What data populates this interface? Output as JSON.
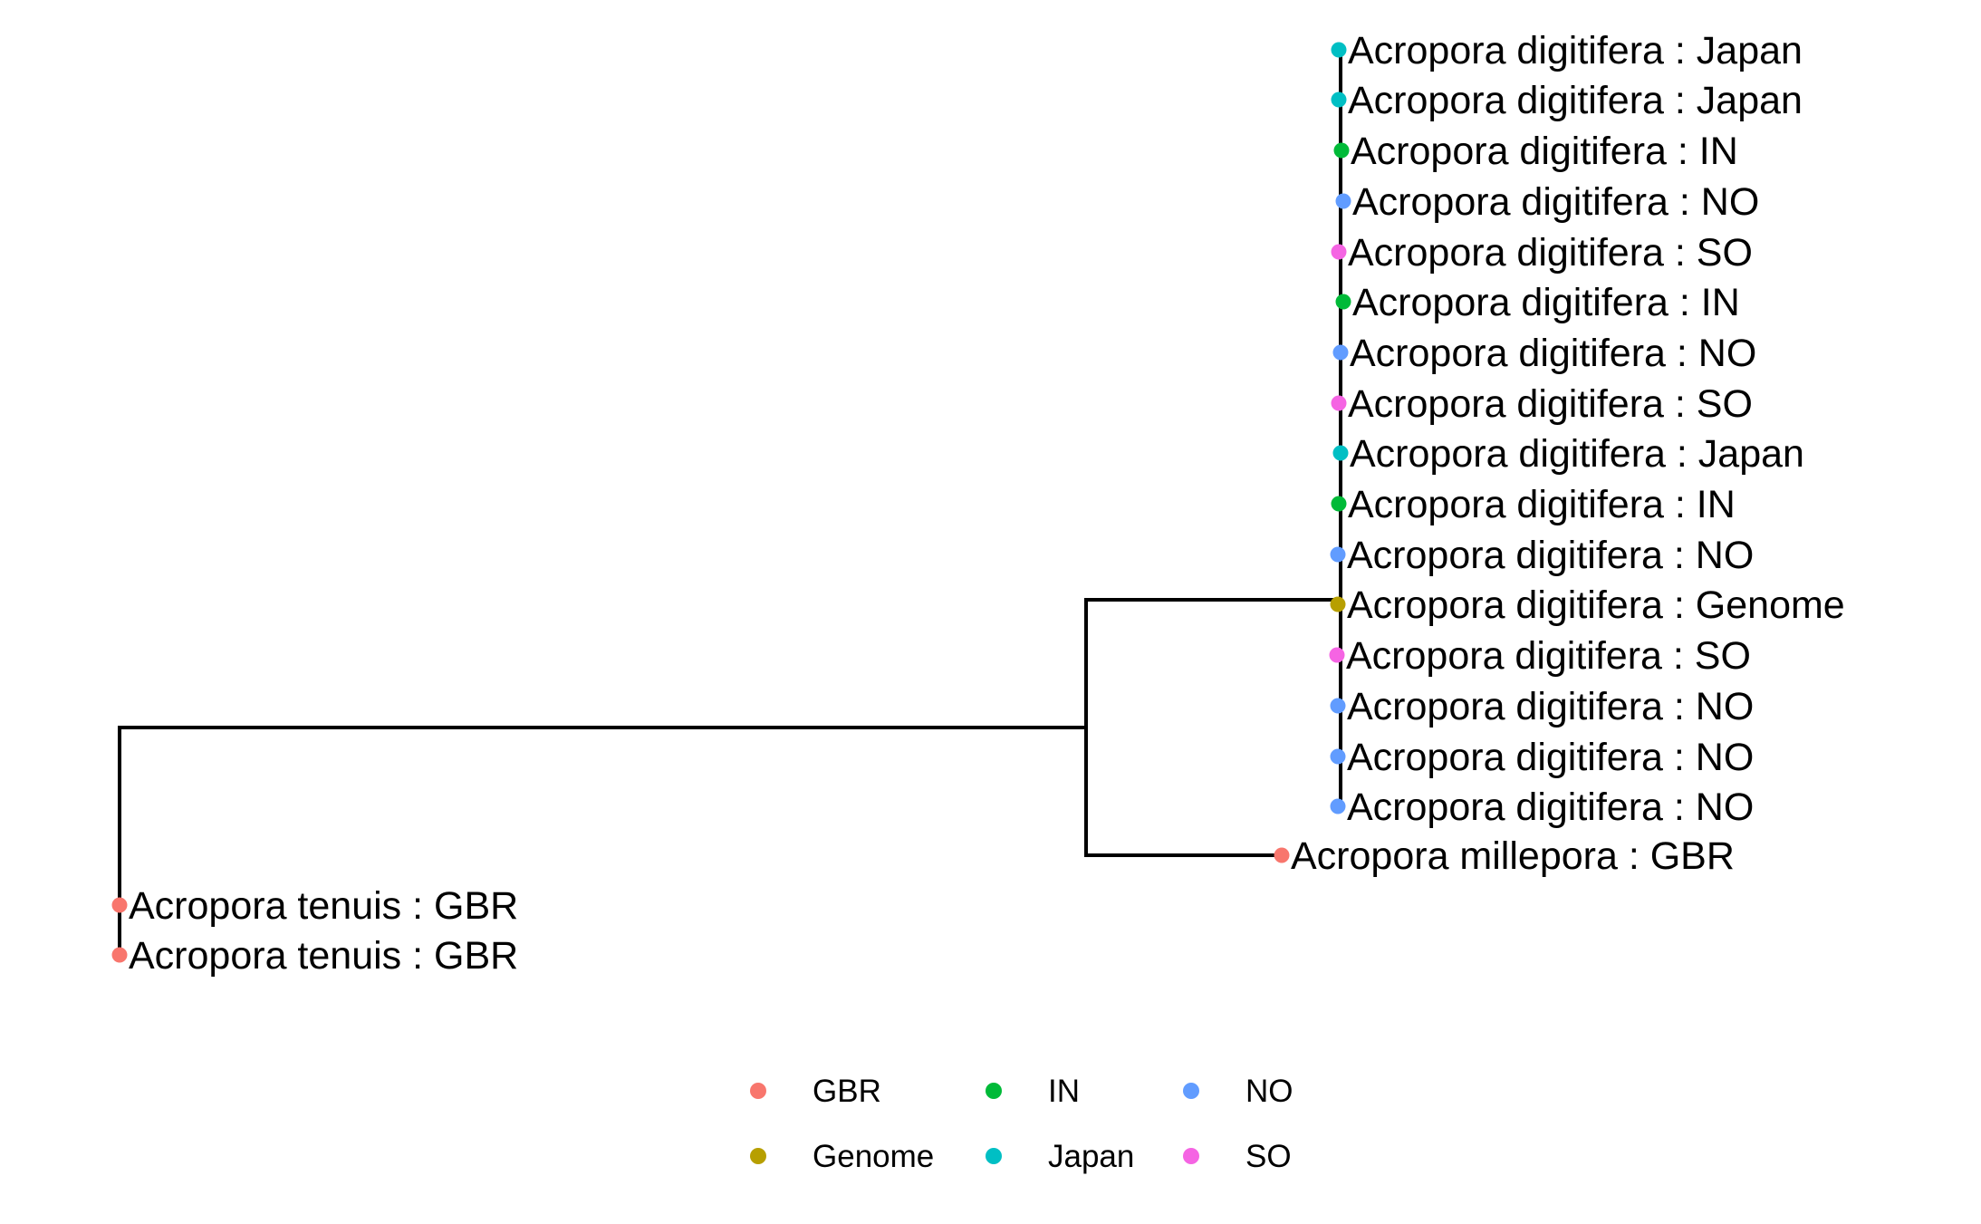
{
  "tree": {
    "tips": [
      {
        "label": "Acropora digitifera : Japan",
        "group": "Japan"
      },
      {
        "label": "Acropora digitifera : Japan",
        "group": "Japan"
      },
      {
        "label": "Acropora digitifera : IN",
        "group": "IN"
      },
      {
        "label": "Acropora digitifera : NO",
        "group": "NO"
      },
      {
        "label": "Acropora digitifera : SO",
        "group": "SO"
      },
      {
        "label": "Acropora digitifera : IN",
        "group": "IN"
      },
      {
        "label": "Acropora digitifera : NO",
        "group": "NO"
      },
      {
        "label": "Acropora digitifera : SO",
        "group": "SO"
      },
      {
        "label": "Acropora digitifera : Japan",
        "group": "Japan"
      },
      {
        "label": "Acropora digitifera : IN",
        "group": "IN"
      },
      {
        "label": "Acropora digitifera : NO",
        "group": "NO"
      },
      {
        "label": "Acropora digitifera : Genome",
        "group": "Genome"
      },
      {
        "label": "Acropora digitifera : SO",
        "group": "SO"
      },
      {
        "label": "Acropora digitifera : NO",
        "group": "NO"
      },
      {
        "label": "Acropora digitifera : NO",
        "group": "NO"
      },
      {
        "label": "Acropora digitifera : NO",
        "group": "NO"
      },
      {
        "label": "Acropora millepora : GBR",
        "group": "GBR"
      },
      {
        "label": "Acropora tenuis : GBR",
        "group": "GBR"
      },
      {
        "label": "Acropora tenuis : GBR",
        "group": "GBR"
      }
    ]
  },
  "legend": {
    "items": [
      {
        "label": "GBR",
        "color": "#F8766D"
      },
      {
        "label": "IN",
        "color": "#00BA38"
      },
      {
        "label": "NO",
        "color": "#619CFF"
      },
      {
        "label": "Genome",
        "color": "#B79F00"
      },
      {
        "label": "Japan",
        "color": "#00BFC4"
      },
      {
        "label": "SO",
        "color": "#F564E3"
      }
    ]
  },
  "colors": {
    "GBR": "#F8766D",
    "Genome": "#B79F00",
    "IN": "#00BA38",
    "Japan": "#00BFC4",
    "NO": "#619CFF",
    "SO": "#F564E3"
  }
}
